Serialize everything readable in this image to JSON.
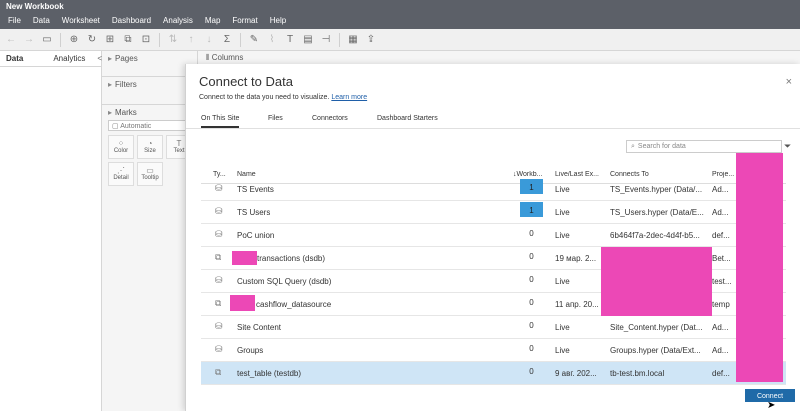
{
  "app": {
    "title": "New Workbook"
  },
  "menu": [
    "File",
    "Data",
    "Worksheet",
    "Dashboard",
    "Analysis",
    "Map",
    "Format",
    "Help"
  ],
  "left_pane": {
    "tabs": [
      "Data",
      "Analytics"
    ],
    "collapse": "<"
  },
  "shelves": {
    "pages": "Pages",
    "filters": "Filters",
    "marks": "Marks",
    "mark_type": "Automatic",
    "columns": "Columns"
  },
  "mark_buttons": [
    {
      "label": "Color",
      "icon": "color-icon"
    },
    {
      "label": "Size",
      "icon": "size-icon"
    },
    {
      "label": "Text",
      "icon": "text-icon"
    },
    {
      "label": "Detail",
      "icon": "detail-icon"
    },
    {
      "label": "Tooltip",
      "icon": "tooltip-icon"
    }
  ],
  "dialog": {
    "title": "Connect to Data",
    "subtitle": "Connect to the data you need to visualize.",
    "learn_more": "Learn more",
    "close": "×",
    "tabs": [
      "On This Site",
      "Files",
      "Connectors",
      "Dashboard Starters"
    ],
    "search_placeholder": "Search for data",
    "columns": {
      "type": "Ty...",
      "name": "Name",
      "workbooks": "↓Workb...",
      "live": "Live/Last Ex...",
      "connects": "Connects To",
      "project": "Proje..."
    },
    "rows": [
      {
        "icon": "database-icon",
        "name": "TS Events",
        "workbooks": "1",
        "live": "Live",
        "connects": "TS_Events.hyper (Data/...",
        "project": "Ad..."
      },
      {
        "icon": "database-icon",
        "name": "TS Users",
        "workbooks": "1",
        "live": "Live",
        "connects": "TS_Users.hyper (Data/E...",
        "project": "Ad..."
      },
      {
        "icon": "database-icon",
        "name": "PoC union",
        "workbooks": "0",
        "live": "Live",
        "connects": "6b464f7a-2dec-4d4f-b5...",
        "project": "def..."
      },
      {
        "icon": "published-datasource-icon",
        "name": "transactions (dsdb)",
        "workbooks": "0",
        "live": "19 мар. 2...",
        "connects": "",
        "project": "Bet..."
      },
      {
        "icon": "database-icon",
        "name": "Custom SQL Query (dsdb)",
        "workbooks": "0",
        "live": "Live",
        "connects": "",
        "project": "test..."
      },
      {
        "icon": "published-datasource-icon",
        "name": "cashflow_datasource",
        "workbooks": "0",
        "live": "11 апр. 20...",
        "connects": "",
        "project": "temp"
      },
      {
        "icon": "database-icon",
        "name": "Site Content",
        "workbooks": "0",
        "live": "Live",
        "connects": "Site_Content.hyper (Dat...",
        "project": "Ad..."
      },
      {
        "icon": "database-icon",
        "name": "Groups",
        "workbooks": "0",
        "live": "Live",
        "connects": "Groups.hyper (Data/Ext...",
        "project": "Ad..."
      },
      {
        "icon": "published-datasource-icon",
        "name": "test_table (testdb)",
        "workbooks": "0",
        "live": "9 авг. 202...",
        "connects": "tb-test.bm.local",
        "project": "def..."
      }
    ],
    "connect_button": "Connect"
  },
  "colors": {
    "title_bar": "#5c6068",
    "selected_row": "#cfe5f6",
    "highlight": "#3a9ad9",
    "redaction": "#ec48b6",
    "connect_button": "#1f6aa8"
  }
}
